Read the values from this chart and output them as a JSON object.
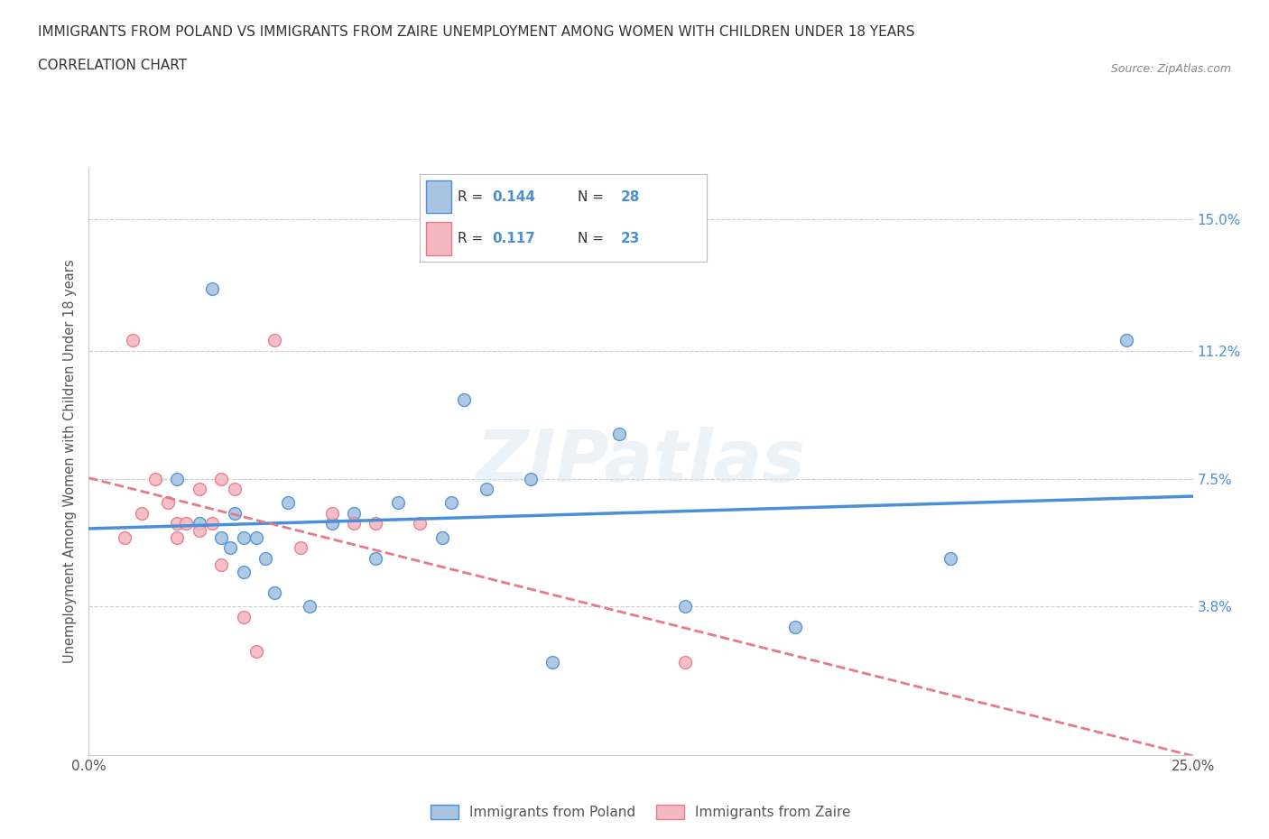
{
  "title_line1": "IMMIGRANTS FROM POLAND VS IMMIGRANTS FROM ZAIRE UNEMPLOYMENT AMONG WOMEN WITH CHILDREN UNDER 18 YEARS",
  "title_line2": "CORRELATION CHART",
  "source_text": "Source: ZipAtlas.com",
  "ylabel": "Unemployment Among Women with Children Under 18 years",
  "xlim": [
    0.0,
    0.25
  ],
  "ylim": [
    -0.005,
    0.165
  ],
  "ytick_positions": [
    0.038,
    0.075,
    0.112,
    0.15
  ],
  "ytick_labels": [
    "3.8%",
    "7.5%",
    "11.2%",
    "15.0%"
  ],
  "hline_positions": [
    0.15,
    0.112,
    0.075,
    0.038
  ],
  "poland_color": "#a8c4e0",
  "zaire_color": "#f4b8c1",
  "poland_line_color": "#4a90d9",
  "zaire_line_color": "#e8788a",
  "R_poland": "0.144",
  "N_poland": "28",
  "R_zaire": "0.117",
  "N_zaire": "23",
  "legend_label_poland": "Immigrants from Poland",
  "legend_label_zaire": "Immigrants from Zaire",
  "watermark": "ZIPatlas",
  "poland_scatter_x": [
    0.02,
    0.025,
    0.028,
    0.03,
    0.032,
    0.033,
    0.035,
    0.035,
    0.038,
    0.04,
    0.042,
    0.045,
    0.05,
    0.055,
    0.06,
    0.065,
    0.07,
    0.08,
    0.082,
    0.085,
    0.09,
    0.1,
    0.105,
    0.12,
    0.135,
    0.16,
    0.195,
    0.235
  ],
  "poland_scatter_y": [
    0.075,
    0.062,
    0.13,
    0.058,
    0.055,
    0.065,
    0.058,
    0.048,
    0.058,
    0.052,
    0.042,
    0.068,
    0.038,
    0.062,
    0.065,
    0.052,
    0.068,
    0.058,
    0.068,
    0.098,
    0.072,
    0.075,
    0.022,
    0.088,
    0.038,
    0.032,
    0.052,
    0.115
  ],
  "zaire_scatter_x": [
    0.008,
    0.012,
    0.015,
    0.018,
    0.02,
    0.02,
    0.022,
    0.025,
    0.025,
    0.028,
    0.03,
    0.03,
    0.033,
    0.035,
    0.038,
    0.042,
    0.048,
    0.055,
    0.06,
    0.065,
    0.075,
    0.135,
    0.01
  ],
  "zaire_scatter_y": [
    0.058,
    0.065,
    0.075,
    0.068,
    0.062,
    0.058,
    0.062,
    0.072,
    0.06,
    0.062,
    0.075,
    0.05,
    0.072,
    0.035,
    0.025,
    0.115,
    0.055,
    0.065,
    0.062,
    0.062,
    0.062,
    0.022,
    0.115
  ],
  "background_color": "#ffffff",
  "title_fontsize": 11,
  "ytick_color": "#4a90d9",
  "xtick_color": "#555555",
  "legend_r_color": "#4a90d9",
  "text_color": "#333333"
}
